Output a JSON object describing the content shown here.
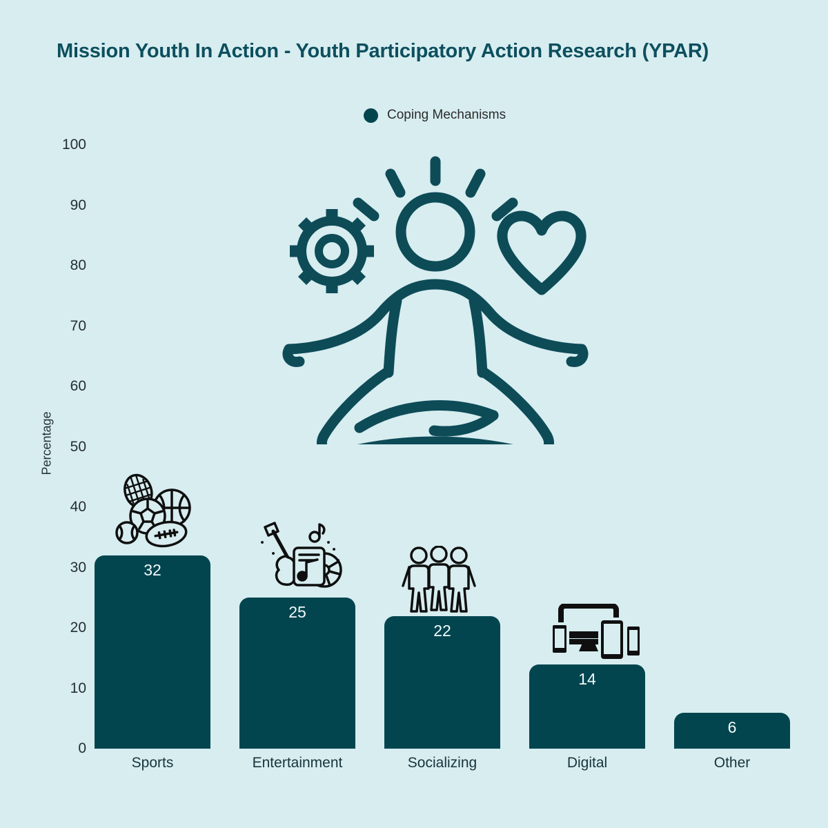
{
  "title": "Mission Youth In Action - Youth Participatory Action Research (YPAR)",
  "legend": {
    "label": "Coping Mechanisms",
    "marker_color": "#02454f"
  },
  "y_axis": {
    "label": "Percentage"
  },
  "colors": {
    "background": "#d7edf0",
    "bar": "#02454f",
    "title": "#0d4f5e",
    "value_label": "#f2fbfc",
    "axis_text": "#242e33",
    "center_icon": "#0d4b57",
    "bar_icons": "#0f0f0f"
  },
  "icons": {
    "center": "meditation-gear-heart-icon",
    "sports": "sports-balls-icon",
    "entertainment": "music-guitar-disc-icon",
    "socializing": "three-friends-icon",
    "digital": "responsive-devices-icon"
  },
  "chart_data": {
    "type": "bar",
    "title": "Mission Youth In Action - Youth Participatory Action Research (YPAR)",
    "series_name": "Coping Mechanisms",
    "categories": [
      "Sports",
      "Entertainment",
      "Socializing",
      "Digital",
      "Other"
    ],
    "values": [
      32,
      25,
      22,
      14,
      6
    ],
    "xlabel": "",
    "ylabel": "Percentage",
    "ylim": [
      0,
      100
    ],
    "yticks": [
      0,
      10,
      20,
      30,
      40,
      50,
      60,
      70,
      80,
      90,
      100
    ],
    "grid": false,
    "legend_position": "top-center",
    "bar_value_labels_inside_top": true
  }
}
